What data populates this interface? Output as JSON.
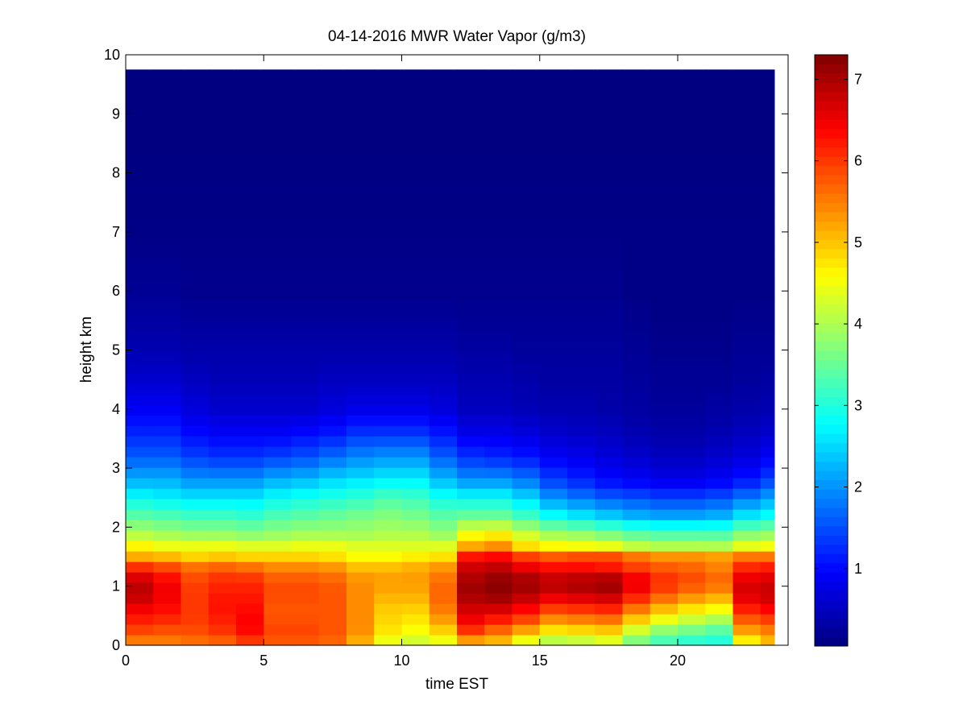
{
  "chart_data": {
    "type": "heatmap",
    "title": "04-14-2016 MWR Water Vapor (g/m3)",
    "xlabel": "time EST",
    "ylabel": "height km",
    "xlim": [
      0,
      24
    ],
    "ylim": [
      0,
      10
    ],
    "x_ticks": [
      0,
      5,
      10,
      15,
      20
    ],
    "y_ticks": [
      0,
      1,
      2,
      3,
      4,
      5,
      6,
      7,
      8,
      9,
      10
    ],
    "colorbar": {
      "colormap": "jet",
      "range": [
        0.05,
        7.3
      ],
      "ticks": [
        1,
        2,
        3,
        4,
        5,
        6,
        7
      ]
    },
    "time_bins_hours": [
      0,
      1,
      2,
      3,
      4,
      5,
      6,
      7,
      8,
      9,
      10,
      11,
      12,
      13,
      14,
      15,
      16,
      17,
      18,
      19,
      20,
      21,
      22,
      23
    ],
    "profile_heights_km": [
      0,
      0.1,
      0.3,
      0.5,
      0.7,
      0.9,
      1.1,
      1.3,
      1.5,
      1.7,
      1.9,
      2.2,
      2.5,
      2.8,
      3.2,
      3.6,
      4.0,
      4.5,
      5.0,
      5.5,
      6.0,
      7.0,
      8.0,
      9.0,
      9.75
    ],
    "water_vapor_g_m3": [
      [
        5.0,
        5.6,
        6.0,
        6.3,
        6.6,
        6.9,
        6.8,
        6.2,
        5.2,
        4.6,
        4.0,
        3.4,
        2.8,
        2.2,
        1.6,
        1.2,
        0.9,
        0.6,
        0.4,
        0.3,
        0.2,
        0.1,
        0.07,
        0.05,
        0.05
      ],
      [
        5.0,
        5.6,
        5.9,
        6.2,
        6.4,
        6.5,
        6.4,
        6.0,
        5.1,
        4.4,
        3.9,
        3.3,
        2.7,
        2.2,
        1.6,
        1.2,
        0.9,
        0.6,
        0.4,
        0.3,
        0.2,
        0.1,
        0.07,
        0.05,
        0.05
      ],
      [
        5.1,
        5.7,
        5.9,
        6.0,
        6.0,
        6.0,
        5.9,
        5.7,
        4.9,
        4.4,
        3.8,
        3.2,
        2.6,
        2.0,
        1.4,
        1.0,
        0.7,
        0.5,
        0.35,
        0.25,
        0.15,
        0.1,
        0.07,
        0.05,
        0.05
      ],
      [
        5.2,
        5.8,
        6.1,
        6.2,
        6.3,
        6.2,
        6.1,
        5.8,
        5.0,
        4.4,
        3.8,
        3.2,
        2.6,
        2.0,
        1.3,
        0.9,
        0.6,
        0.45,
        0.35,
        0.25,
        0.15,
        0.1,
        0.07,
        0.05,
        0.05
      ],
      [
        5.4,
        6.1,
        6.4,
        6.4,
        6.3,
        6.2,
        6.1,
        5.7,
        4.9,
        4.3,
        3.7,
        3.1,
        2.6,
        2.0,
        1.3,
        0.9,
        0.6,
        0.45,
        0.35,
        0.25,
        0.15,
        0.1,
        0.07,
        0.05,
        0.05
      ],
      [
        5.0,
        5.9,
        5.9,
        5.8,
        5.8,
        5.9,
        5.8,
        5.5,
        4.9,
        4.3,
        3.8,
        3.3,
        2.8,
        2.2,
        1.4,
        0.9,
        0.6,
        0.45,
        0.35,
        0.25,
        0.15,
        0.1,
        0.07,
        0.05,
        0.05
      ],
      [
        5.0,
        5.9,
        5.9,
        5.8,
        5.8,
        5.9,
        5.8,
        5.5,
        4.9,
        4.4,
        3.9,
        3.4,
        2.9,
        2.3,
        1.5,
        1.0,
        0.6,
        0.45,
        0.35,
        0.25,
        0.15,
        0.1,
        0.07,
        0.05,
        0.05
      ],
      [
        4.8,
        5.8,
        5.8,
        5.8,
        5.8,
        5.8,
        5.7,
        5.4,
        4.8,
        4.4,
        3.9,
        3.5,
        3.0,
        2.5,
        1.7,
        1.1,
        0.7,
        0.5,
        0.35,
        0.25,
        0.15,
        0.1,
        0.07,
        0.05,
        0.05
      ],
      [
        4.2,
        5.3,
        5.4,
        5.4,
        5.4,
        5.4,
        5.4,
        5.1,
        4.6,
        4.3,
        3.9,
        3.6,
        3.1,
        2.6,
        1.9,
        1.3,
        0.8,
        0.5,
        0.35,
        0.25,
        0.15,
        0.1,
        0.07,
        0.05,
        0.05
      ],
      [
        3.5,
        4.6,
        4.8,
        4.9,
        5.0,
        5.2,
        5.3,
        5.1,
        4.6,
        4.3,
        4.0,
        3.7,
        3.3,
        2.7,
        2.0,
        1.3,
        0.8,
        0.5,
        0.35,
        0.25,
        0.15,
        0.1,
        0.07,
        0.05,
        0.05
      ],
      [
        3.3,
        4.4,
        4.6,
        4.8,
        5.0,
        5.2,
        5.3,
        5.2,
        4.7,
        4.3,
        4.0,
        3.6,
        3.2,
        2.7,
        2.0,
        1.3,
        0.8,
        0.5,
        0.35,
        0.25,
        0.15,
        0.1,
        0.07,
        0.05,
        0.05
      ],
      [
        3.6,
        4.6,
        5.0,
        5.4,
        5.6,
        5.7,
        5.6,
        5.4,
        4.8,
        4.3,
        3.8,
        3.4,
        2.9,
        2.3,
        1.6,
        1.1,
        0.7,
        0.5,
        0.35,
        0.25,
        0.15,
        0.1,
        0.07,
        0.05,
        0.05
      ],
      [
        4.6,
        5.4,
        6.2,
        6.6,
        6.8,
        7.1,
        7.0,
        6.8,
        6.3,
        5.1,
        4.5,
        3.5,
        2.8,
        2.0,
        1.3,
        0.8,
        0.5,
        0.4,
        0.3,
        0.2,
        0.15,
        0.1,
        0.07,
        0.05,
        0.05
      ],
      [
        4.4,
        5.2,
        5.8,
        6.4,
        6.9,
        7.2,
        7.2,
        6.9,
        6.4,
        5.3,
        4.6,
        3.5,
        2.8,
        2.0,
        1.2,
        0.8,
        0.5,
        0.4,
        0.3,
        0.2,
        0.15,
        0.1,
        0.07,
        0.05,
        0.05
      ],
      [
        3.6,
        4.6,
        5.4,
        6.1,
        6.6,
        7.0,
        7.1,
        6.6,
        6.0,
        4.7,
        4.2,
        3.2,
        2.5,
        1.8,
        1.1,
        0.7,
        0.45,
        0.35,
        0.25,
        0.2,
        0.15,
        0.1,
        0.07,
        0.05,
        0.05
      ],
      [
        3.3,
        4.2,
        4.9,
        5.6,
        6.2,
        6.8,
        6.9,
        6.4,
        5.8,
        4.5,
        3.9,
        2.8,
        2.0,
        1.4,
        0.9,
        0.6,
        0.4,
        0.3,
        0.25,
        0.2,
        0.15,
        0.1,
        0.07,
        0.05,
        0.05
      ],
      [
        3.4,
        4.3,
        5.0,
        5.7,
        6.3,
        6.9,
        7.0,
        6.4,
        5.9,
        4.4,
        3.8,
        2.6,
        1.8,
        1.2,
        0.8,
        0.55,
        0.4,
        0.3,
        0.25,
        0.2,
        0.15,
        0.1,
        0.07,
        0.05,
        0.05
      ],
      [
        3.5,
        4.5,
        5.1,
        5.8,
        6.4,
        7.0,
        7.1,
        6.3,
        5.9,
        4.3,
        3.6,
        2.4,
        1.6,
        1.0,
        0.7,
        0.5,
        0.35,
        0.3,
        0.25,
        0.2,
        0.15,
        0.1,
        0.07,
        0.05,
        0.05
      ],
      [
        2.9,
        3.8,
        4.4,
        5.2,
        5.8,
        6.4,
        6.6,
        6.0,
        5.6,
        4.0,
        3.4,
        2.2,
        1.5,
        0.9,
        0.6,
        0.4,
        0.3,
        0.25,
        0.2,
        0.15,
        0.1,
        0.1,
        0.07,
        0.05,
        0.05
      ],
      [
        2.6,
        3.4,
        3.9,
        4.7,
        5.3,
        5.9,
        6.1,
        5.8,
        5.4,
        3.9,
        3.3,
        2.1,
        1.4,
        0.8,
        0.5,
        0.35,
        0.25,
        0.2,
        0.15,
        0.1,
        0.1,
        0.1,
        0.07,
        0.05,
        0.05
      ],
      [
        2.5,
        3.2,
        3.7,
        4.4,
        5.0,
        5.6,
        5.9,
        5.7,
        5.4,
        3.9,
        3.3,
        2.1,
        1.4,
        0.8,
        0.5,
        0.35,
        0.25,
        0.2,
        0.15,
        0.1,
        0.1,
        0.1,
        0.07,
        0.05,
        0.05
      ],
      [
        2.5,
        3.1,
        3.5,
        4.2,
        4.8,
        5.4,
        5.7,
        5.5,
        5.3,
        3.9,
        3.3,
        2.2,
        1.5,
        0.9,
        0.6,
        0.4,
        0.3,
        0.2,
        0.15,
        0.1,
        0.1,
        0.1,
        0.07,
        0.05,
        0.05
      ],
      [
        3.8,
        4.8,
        5.4,
        5.9,
        6.4,
        6.7,
        6.6,
        6.2,
        5.6,
        4.3,
        3.7,
        2.6,
        1.8,
        1.1,
        0.7,
        0.5,
        0.35,
        0.25,
        0.2,
        0.15,
        0.1,
        0.1,
        0.07,
        0.05,
        0.05
      ],
      [
        4.4,
        5.2,
        5.6,
        6.1,
        6.6,
        6.8,
        6.7,
        6.3,
        5.6,
        4.4,
        3.8,
        2.8,
        2.1,
        1.4,
        0.9,
        0.6,
        0.4,
        0.3,
        0.2,
        0.15,
        0.1,
        0.1,
        0.07,
        0.05,
        0.05
      ]
    ]
  }
}
